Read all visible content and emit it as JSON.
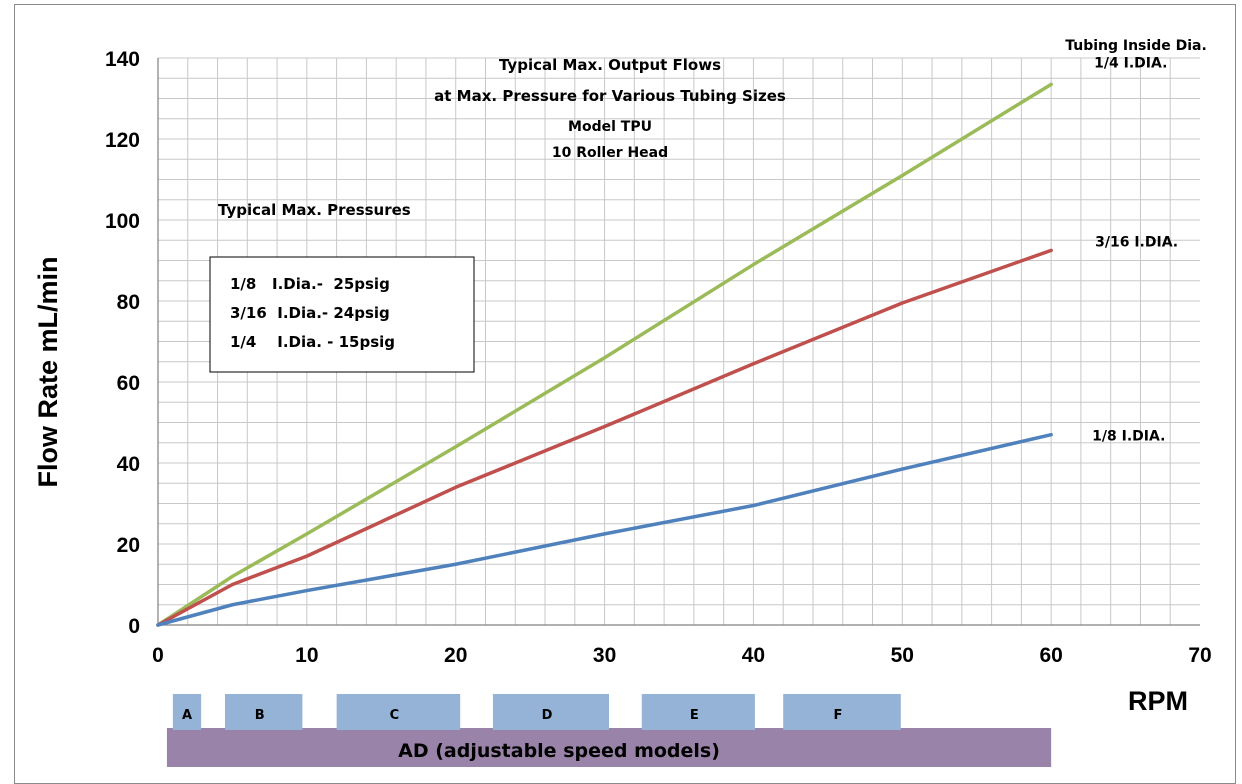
{
  "chart_data": {
    "type": "line",
    "title_lines": [
      "Typical Max. Output Flows",
      "at Max. Pressure for  Various  Tubing Sizes",
      "Model TPU",
      "10 Roller Head"
    ],
    "xlabel": "RPM",
    "ylabel": "Flow Rate mL/min",
    "xlim": [
      0,
      70
    ],
    "ylim": [
      0,
      140
    ],
    "x_ticks": [
      "0",
      "10",
      "20",
      "30",
      "40",
      "50",
      "60",
      "70"
    ],
    "y_ticks": [
      "0",
      "20",
      "40",
      "60",
      "80",
      "100",
      "120",
      "140"
    ],
    "grid": true,
    "legend_title": "Tubing Inside Dia.",
    "series": [
      {
        "name": "1/4 I.DIA.",
        "color": "#9bbb59",
        "x": [
          0,
          5,
          10,
          20,
          30,
          40,
          50,
          60
        ],
        "y": [
          0,
          12,
          22.5,
          44,
          66,
          89,
          111,
          133.5
        ]
      },
      {
        "name": "3/16 I.DIA.",
        "color": "#c0504d",
        "x": [
          0,
          5,
          10,
          20,
          30,
          40,
          50,
          60
        ],
        "y": [
          0,
          10,
          17,
          34,
          49,
          64.5,
          79.5,
          92.5
        ]
      },
      {
        "name": "1/8 I.DIA.",
        "color": "#4f81bd",
        "x": [
          0,
          5,
          10,
          20,
          30,
          40,
          50,
          60
        ],
        "y": [
          0,
          5,
          8.5,
          15,
          22.5,
          29.5,
          38.5,
          47
        ]
      }
    ],
    "pressure_box": {
      "heading": "Typical Max. Pressures",
      "lines": [
        "1/8   I.Dia.-  25psig",
        "3/16  I.Dia.- 24psig",
        "1/4    I.Dia. - 15psig"
      ]
    },
    "speed_bands": [
      {
        "label": "A",
        "from": 1.0,
        "to": 2.9
      },
      {
        "label": "B",
        "from": 4.5,
        "to": 9.7
      },
      {
        "label": "C",
        "from": 12.0,
        "to": 20.3
      },
      {
        "label": "D",
        "from": 22.5,
        "to": 30.3
      },
      {
        "label": "E",
        "from": 32.5,
        "to": 40.1
      },
      {
        "label": "F",
        "from": 42.0,
        "to": 49.9
      }
    ],
    "range_bar": {
      "label": "AD (adjustable speed models)",
      "from": 0.6,
      "to": 60
    },
    "colors": {
      "band": "#95b3d7",
      "range_bar": "#9983a8",
      "grid": "#c8c8c8"
    }
  }
}
